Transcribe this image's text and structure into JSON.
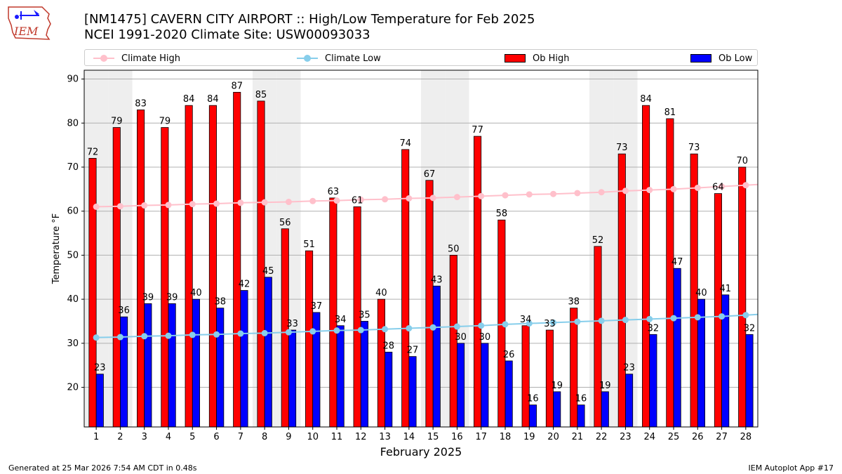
{
  "header": {
    "logo_text": "IEM",
    "title_line1": "[NM1475] CAVERN CITY AIRPORT :: High/Low Temperature for Feb 2025",
    "title_line2": "NCEI 1991-2020 Climate Site: USW00093033"
  },
  "legend": [
    {
      "label": "Climate High",
      "kind": "line",
      "color": "#ffc0cb"
    },
    {
      "label": "Climate Low",
      "kind": "line",
      "color": "#87ceeb"
    },
    {
      "label": "Ob High",
      "kind": "bar",
      "color": "#ff0000"
    },
    {
      "label": "Ob Low",
      "kind": "bar",
      "color": "#0000ff"
    }
  ],
  "chart_data": {
    "type": "bar",
    "xlabel": "February 2025",
    "ylabel": "Temperature °F",
    "ylim": [
      11,
      92
    ],
    "yticks": [
      20,
      30,
      40,
      50,
      60,
      70,
      80,
      90
    ],
    "grid": "horizontal",
    "legend_position": "top",
    "categories": [
      1,
      2,
      3,
      4,
      5,
      6,
      7,
      8,
      9,
      10,
      11,
      12,
      13,
      14,
      15,
      16,
      17,
      18,
      19,
      20,
      21,
      22,
      23,
      24,
      25,
      26,
      27,
      28
    ],
    "weekend_shaded_days": [
      1,
      2,
      8,
      9,
      15,
      16,
      22,
      23
    ],
    "series": [
      {
        "name": "Ob High",
        "type": "bar",
        "color": "#ff0000",
        "values": [
          72,
          79,
          83,
          79,
          84,
          84,
          87,
          85,
          56,
          51,
          63,
          61,
          40,
          74,
          67,
          50,
          77,
          58,
          34,
          33,
          38,
          52,
          73,
          84,
          81,
          73,
          64,
          70
        ]
      },
      {
        "name": "Ob Low",
        "type": "bar",
        "color": "#0000ff",
        "values": [
          23,
          36,
          39,
          39,
          40,
          38,
          42,
          45,
          33,
          37,
          34,
          35,
          28,
          27,
          43,
          30,
          30,
          26,
          16,
          19,
          16,
          19,
          23,
          32,
          47,
          40,
          41,
          32
        ]
      },
      {
        "name": "Climate High",
        "type": "line",
        "color": "#ffc0cb",
        "values": [
          61.0,
          61.1,
          61.3,
          61.4,
          61.6,
          61.7,
          61.9,
          62.0,
          62.1,
          62.3,
          62.4,
          62.6,
          62.7,
          62.9,
          63.0,
          63.2,
          63.4,
          63.6,
          63.8,
          63.9,
          64.1,
          64.3,
          64.6,
          64.8,
          65.0,
          65.3,
          65.6,
          65.9
        ]
      },
      {
        "name": "Climate Low",
        "type": "line",
        "color": "#87ceeb",
        "values": [
          31.3,
          31.4,
          31.6,
          31.7,
          31.9,
          32.0,
          32.2,
          32.3,
          32.5,
          32.7,
          32.9,
          33.0,
          33.2,
          33.4,
          33.6,
          33.8,
          34.0,
          34.3,
          34.5,
          34.7,
          34.9,
          35.1,
          35.3,
          35.5,
          35.7,
          35.9,
          36.1,
          36.4
        ]
      }
    ]
  },
  "footer": {
    "left": "Generated at 25 Mar 2026 7:54 AM CDT in 0.48s",
    "right": "IEM Autoplot App #17"
  }
}
